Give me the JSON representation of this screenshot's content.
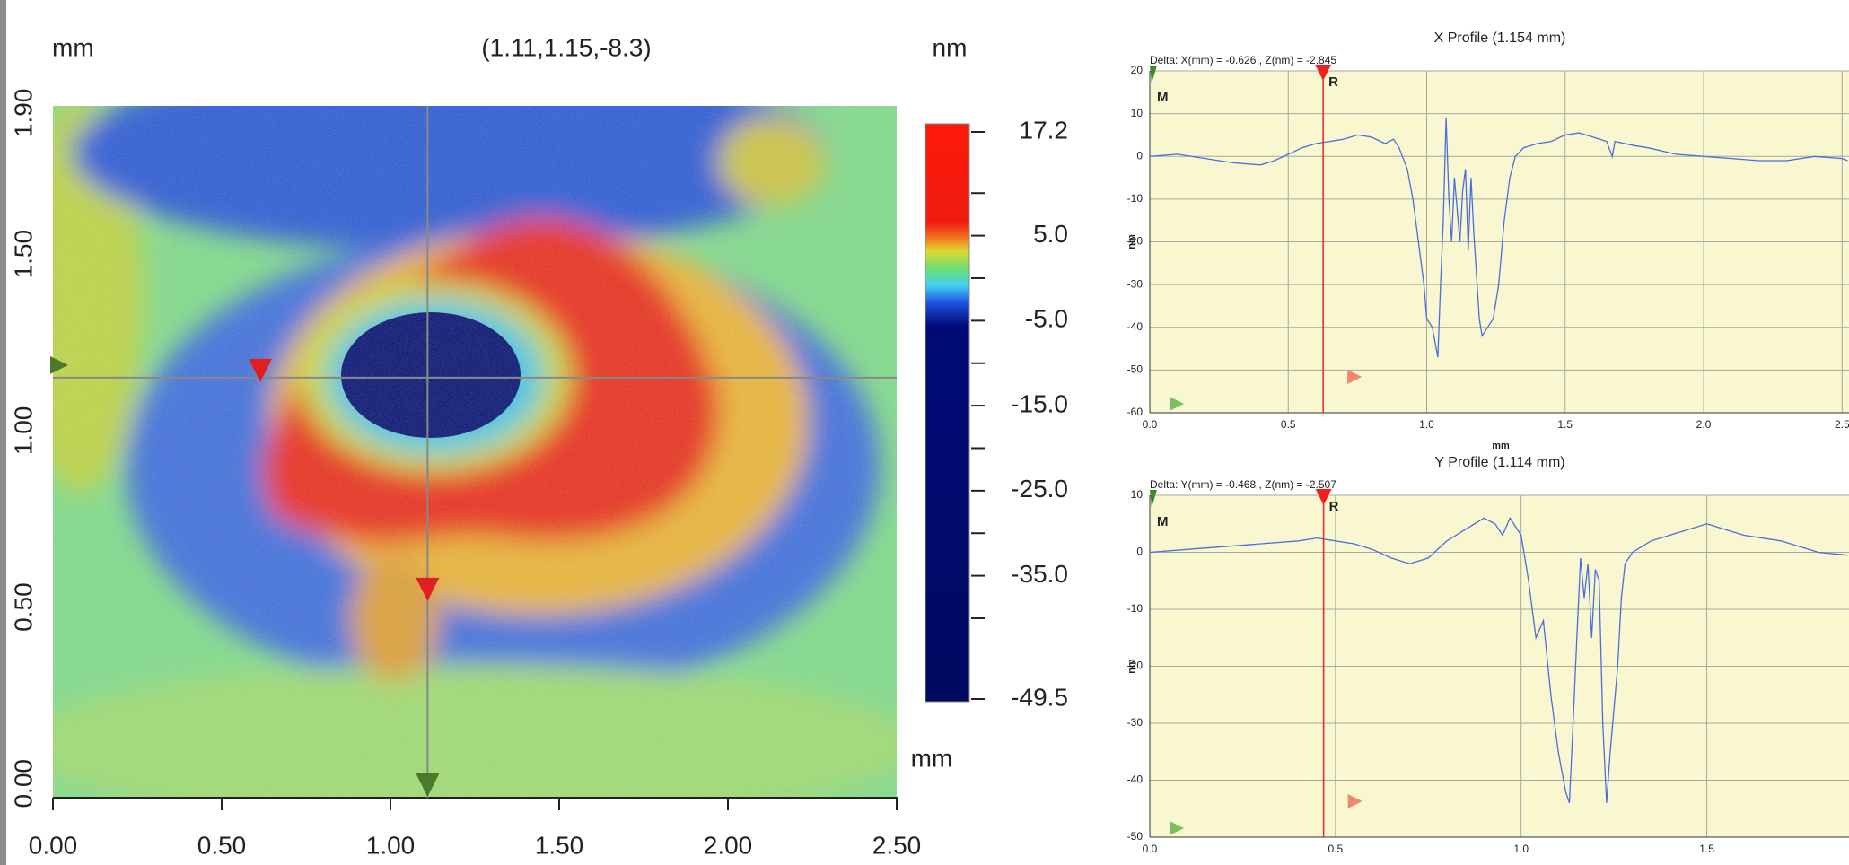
{
  "chart_data": [
    {
      "type": "heatmap",
      "ylabel": "mm",
      "annotation": "(1.11,1.15,-8.3)",
      "colorbar_label": "nm",
      "xlabel": "mm",
      "xlim": [
        0,
        2.5
      ],
      "ylim": [
        -0.04,
        1.92
      ],
      "xticks": [
        {
          "value": 0,
          "label": "0.00"
        },
        {
          "value": 0.5,
          "label": "0.50"
        },
        {
          "value": 1,
          "label": "1.00"
        },
        {
          "value": 1.5,
          "label": "1.50"
        },
        {
          "value": 2,
          "label": "2.00"
        },
        {
          "value": 2.5,
          "label": "2.50"
        }
      ],
      "yticks": [
        {
          "value": 0,
          "label": "0.00"
        },
        {
          "value": 0.5,
          "label": "0.50"
        },
        {
          "value": 1,
          "label": "1.00"
        },
        {
          "value": 1.5,
          "label": "1.50"
        },
        {
          "value": 1.9,
          "label": "1.90"
        }
      ],
      "cursor": [
        1.11,
        1.15
      ],
      "clim": [
        -49.5,
        17.2
      ],
      "cticks": [
        17.2,
        {
          "value": 5,
          "label": "5.0"
        },
        {
          "value": -5,
          "label": "-5.0"
        },
        {
          "value": -15,
          "label": "-15.0"
        },
        {
          "value": -25,
          "label": "-25.0"
        },
        {
          "value": -35,
          "label": "-35.0"
        },
        -49.5
      ],
      "cminor_ticks": [
        10,
        0,
        -10,
        -20,
        -30,
        -40
      ]
    },
    {
      "type": "line",
      "title": "X Profile (1.154 mm)",
      "annotation": "Delta:  X(mm) = -0.626 ,  Z(nm) = -2.845",
      "ylabel": "nm",
      "xlabel": "mm",
      "x": [
        0,
        0.1,
        0.2,
        0.3,
        0.4,
        0.45,
        0.5,
        0.55,
        0.6,
        0.65,
        0.7,
        0.75,
        0.8,
        0.85,
        0.88,
        0.9,
        0.93,
        0.95,
        0.97,
        0.99,
        1.0,
        1.02,
        1.04,
        1.05,
        1.06,
        1.07,
        1.08,
        1.09,
        1.1,
        1.12,
        1.13,
        1.14,
        1.15,
        1.16,
        1.17,
        1.19,
        1.2,
        1.22,
        1.24,
        1.26,
        1.28,
        1.3,
        1.32,
        1.35,
        1.4,
        1.45,
        1.5,
        1.55,
        1.6,
        1.65,
        1.67,
        1.68,
        1.75,
        1.8,
        1.9,
        2.0,
        2.1,
        2.2,
        2.3,
        2.4,
        2.5,
        2.52
      ],
      "values": [
        0,
        0.5,
        -0.5,
        -1.5,
        -2,
        -1,
        0.5,
        2,
        3,
        3.5,
        4,
        5,
        4.5,
        3,
        4,
        2,
        -3,
        -10,
        -20,
        -30,
        -38,
        -40,
        -47,
        -30,
        -15,
        9,
        -10,
        -20,
        -5,
        -20,
        -8,
        -3,
        -22,
        -5,
        -18,
        -38,
        -42,
        -40,
        -38,
        -30,
        -15,
        -5,
        0,
        2,
        3,
        3.5,
        5,
        5.5,
        4.5,
        3.5,
        0,
        3.5,
        2.5,
        2,
        0.5,
        0,
        -0.5,
        -1,
        -1,
        0,
        -0.5,
        -1
      ],
      "color": "#4a6ee0",
      "xlim": [
        0,
        2.525
      ],
      "ylim": [
        -60,
        20
      ],
      "xticks": [
        {
          "value": 0,
          "label": "0.0"
        },
        0.5,
        {
          "value": 1,
          "label": "1.0"
        },
        1.5,
        {
          "value": 2,
          "label": "2.0"
        },
        2.5
      ],
      "yticks": [
        -60,
        -50,
        -40,
        -30,
        -20,
        -10,
        0,
        10,
        20
      ],
      "grid": true,
      "cursor_x": 0.626,
      "markers": [
        "M",
        "R"
      ]
    },
    {
      "type": "line",
      "title": "Y Profile (1.114 mm)",
      "annotation": "Delta:  Y(mm) = -0.468 ,  Z(nm) = -2.507",
      "ylabel": "nm",
      "x": [
        0,
        0.1,
        0.2,
        0.3,
        0.4,
        0.45,
        0.5,
        0.55,
        0.6,
        0.65,
        0.7,
        0.75,
        0.8,
        0.85,
        0.9,
        0.93,
        0.95,
        0.97,
        1.0,
        1.02,
        1.04,
        1.06,
        1.08,
        1.1,
        1.12,
        1.13,
        1.14,
        1.15,
        1.16,
        1.17,
        1.18,
        1.19,
        1.2,
        1.21,
        1.22,
        1.23,
        1.24,
        1.26,
        1.27,
        1.28,
        1.3,
        1.35,
        1.4,
        1.45,
        1.5,
        1.55,
        1.6,
        1.7,
        1.8,
        1.88
      ],
      "values": [
        0,
        0.5,
        1,
        1.5,
        2,
        2.5,
        2,
        1.5,
        0.5,
        -1,
        -2,
        -1,
        2,
        4,
        6,
        5,
        3,
        6,
        3,
        -5,
        -15,
        -12,
        -25,
        -35,
        -42,
        -44,
        -30,
        -15,
        -1,
        -8,
        -2,
        -15,
        -3,
        -5,
        -30,
        -44,
        -35,
        -20,
        -8,
        -2,
        0,
        2,
        3,
        4,
        5,
        4,
        3,
        2,
        0,
        -0.5
      ],
      "color": "#4a6ee0",
      "xlim": [
        0,
        1.883
      ],
      "ylim": [
        -50,
        10
      ],
      "xticks": [
        {
          "value": 0,
          "label": "0.0"
        },
        0.5,
        {
          "value": 1,
          "label": "1.0"
        },
        1.5
      ],
      "yticks": [
        -50,
        -40,
        -30,
        -20,
        -10,
        0,
        10
      ],
      "grid": true,
      "cursor_x": 0.468,
      "markers": [
        "M",
        "R"
      ]
    }
  ]
}
